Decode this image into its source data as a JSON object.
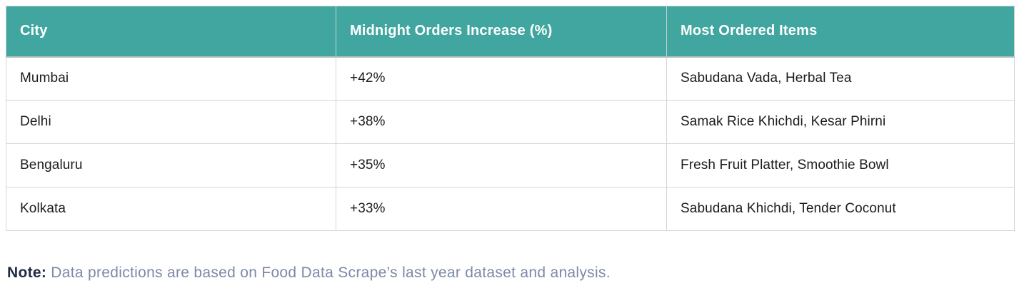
{
  "theme": {
    "header_bg": "#41a6a0",
    "header_text": "#ffffff",
    "cell_border": "#d2d6d6",
    "body_text": "#1c1c1c",
    "note_label_color": "#222b44",
    "note_text_color": "#7d89a6"
  },
  "table": {
    "headers": [
      "City",
      "Midnight Orders Increase (%)",
      "Most Ordered Items"
    ],
    "rows": [
      [
        "Mumbai",
        "+42%",
        "Sabudana Vada, Herbal Tea"
      ],
      [
        "Delhi",
        "+38%",
        "Samak Rice Khichdi, Kesar Phirni"
      ],
      [
        "Bengaluru",
        "+35%",
        "Fresh Fruit Platter, Smoothie Bowl"
      ],
      [
        "Kolkata",
        "+33%",
        "Sabudana Khichdi, Tender Coconut"
      ]
    ]
  },
  "note": {
    "label": "Note:",
    "text": " Data predictions are based on Food Data Scrape’s last year dataset and analysis."
  }
}
